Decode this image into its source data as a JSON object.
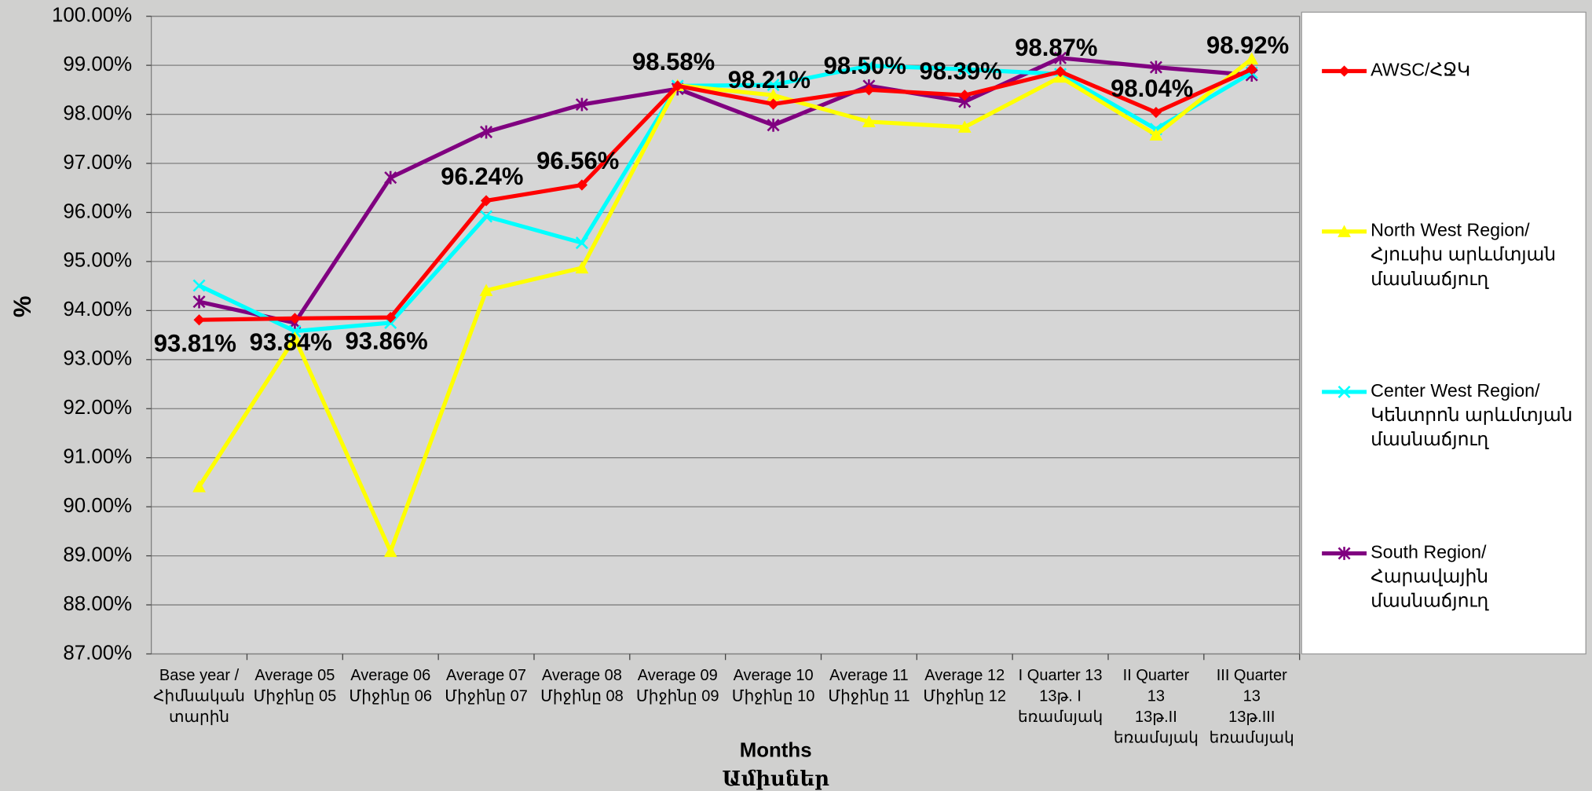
{
  "chart_data": {
    "type": "line",
    "ylabel": "%",
    "xlabel": [
      "Months",
      "Ամիսներ"
    ],
    "categories": [
      "Base year /\nՀիմնական\nտարին",
      "Average 05\nՄիջինը 05",
      "Average 06\nՄիջինը 06",
      "Average 07\nՄիջինը 07",
      "Average 08\nՄիջինը 08",
      "Average 09\nՄիջինը 09",
      "Average 10\nՄիջինը 10",
      "Average 11\nՄիջինը 11",
      "Average 12\nՄիջինը 12",
      "I Quarter 13\n13թ. I\nեռամսյակ",
      "II Quarter\n13\n13թ.II\nեռամսյակ",
      "III Quarter\n13\n13թ.III\nեռամսյակ"
    ],
    "series": [
      {
        "name": "AWSC/ՀՋԿ",
        "color": "#ff0000",
        "marker": "diamond",
        "values": [
          93.81,
          93.84,
          93.86,
          96.24,
          96.56,
          98.58,
          98.21,
          98.5,
          98.39,
          98.87,
          98.04,
          98.92
        ],
        "value_labels": [
          "93.81%",
          "93.84%",
          "93.86%",
          "96.24%",
          "96.56%",
          "98.58%",
          "98.21%",
          "98.50%",
          "98.39%",
          "98.87%",
          "98.04%",
          "98.92%"
        ]
      },
      {
        "name": "North West Region/\nՀյուսիս արևմտյան\nմասնաճյուղ",
        "color": "#ffff00",
        "marker": "triangle",
        "values": [
          90.41,
          93.44,
          89.09,
          94.41,
          94.87,
          98.59,
          98.39,
          97.85,
          97.74,
          98.76,
          97.58,
          99.13
        ]
      },
      {
        "name": "Center West Region/\nԿենտրոն արևմտյան\nմասնաճյուղ",
        "color": "#00ffff",
        "marker": "x",
        "values": [
          94.51,
          93.58,
          93.75,
          95.92,
          95.38,
          98.58,
          98.6,
          98.99,
          98.92,
          98.82,
          97.7,
          98.85
        ]
      },
      {
        "name": "South Region/\nՀարավային\nմասնաճյուղ",
        "color": "#800080",
        "marker": "star",
        "values": [
          94.18,
          93.75,
          96.71,
          97.64,
          98.2,
          98.52,
          97.78,
          98.58,
          98.26,
          99.15,
          98.96,
          98.8
        ]
      }
    ],
    "ylim": [
      87,
      100
    ],
    "yticks": [
      {
        "value": 87,
        "label": "87.00%"
      },
      {
        "value": 88,
        "label": "88.00%"
      },
      {
        "value": 89,
        "label": "89.00%"
      },
      {
        "value": 90,
        "label": "90.00%"
      },
      {
        "value": 91,
        "label": "91.00%"
      },
      {
        "value": 92,
        "label": "92.00%"
      },
      {
        "value": 93,
        "label": "93.00%"
      },
      {
        "value": 94,
        "label": "94.00%"
      },
      {
        "value": 95,
        "label": "95.00%"
      },
      {
        "value": 96,
        "label": "96.00%"
      },
      {
        "value": 97,
        "label": "97.00%"
      },
      {
        "value": 98,
        "label": "98.00%"
      },
      {
        "value": 99,
        "label": "99.00%"
      },
      {
        "value": 100,
        "label": "100.00%"
      }
    ],
    "grid": true,
    "legend": "right"
  }
}
